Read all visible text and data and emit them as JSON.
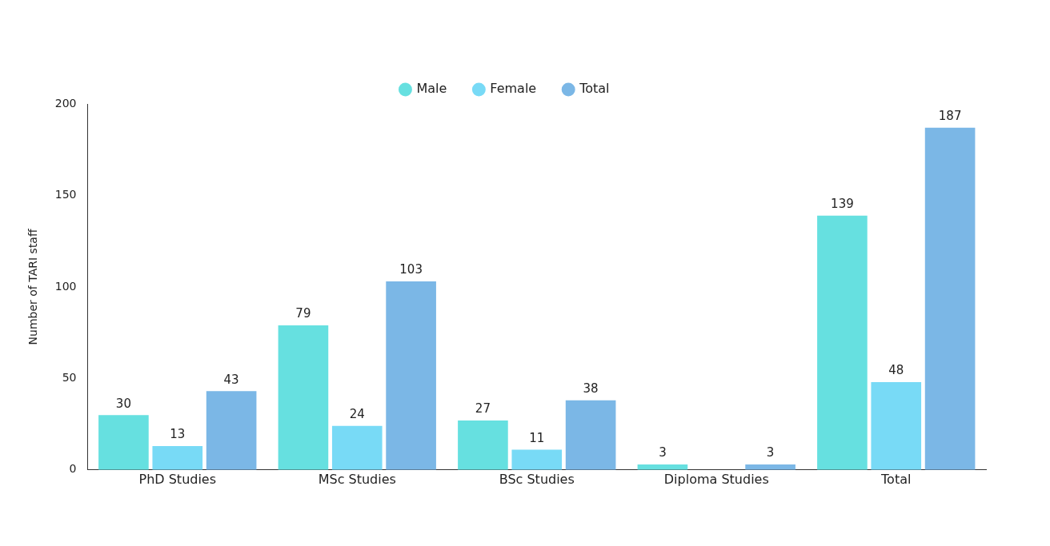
{
  "chart_data": {
    "type": "bar",
    "categories": [
      "PhD Studies",
      "MSc Studies",
      "BSc Studies",
      "Diploma Studies",
      "Total"
    ],
    "ylabel": "Number of TARI staff",
    "series": [
      {
        "name": "Male",
        "color": "#66e0e0",
        "values": [
          30,
          79,
          27,
          3,
          139
        ]
      },
      {
        "name": "Female",
        "color": "#78daf6",
        "values": [
          13,
          24,
          11,
          null,
          48
        ]
      },
      {
        "name": "Total",
        "color": "#7bb7e6",
        "values": [
          43,
          103,
          38,
          3,
          187
        ]
      }
    ],
    "ylim": [
      0,
      200
    ],
    "yticks": [
      0,
      50,
      100,
      150,
      200
    ],
    "grid": false,
    "legend": "top",
    "data_labels": true
  }
}
